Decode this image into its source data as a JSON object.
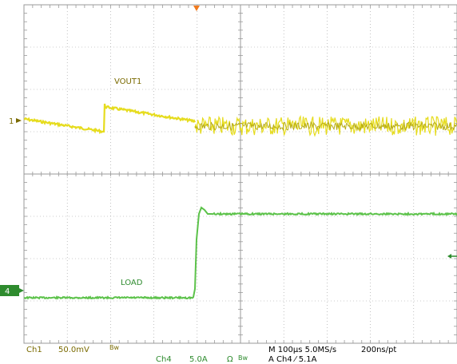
{
  "traces": {
    "ch1_label": "VOUT1",
    "ch4_label": "LOAD"
  },
  "markers": {
    "ch1_ref": "1",
    "ch4_ref": "4"
  },
  "status": {
    "ch1_name": "Ch1",
    "ch1_scale": "50.0mV",
    "ch1_bw": "Bw",
    "ch4_name": "Ch4",
    "ch4_scale": "5.0A",
    "ch4_coupling": "Ω",
    "ch4_bw": "Bw",
    "timebase": "M 100µs 5.0MS/s",
    "resolution": "200ns/pt",
    "trigger": "A  Ch4  ⁄  5.1A"
  },
  "colors": {
    "ch1": "#e6dc1e",
    "ch4": "#5cc24a",
    "grid": "#9a9a9a",
    "trigger_marker": "#f07a1e"
  }
}
